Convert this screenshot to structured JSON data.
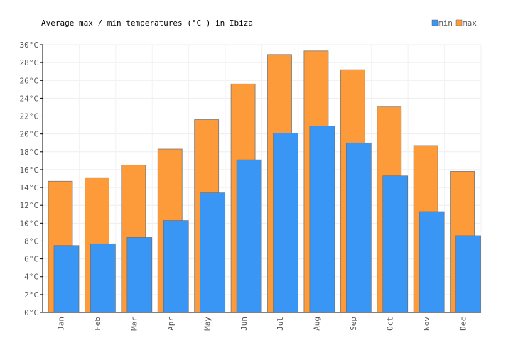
{
  "chart_data": {
    "type": "bar",
    "title": "Average max / min temperatures (°C ) in Ibiza",
    "categories": [
      "Jan",
      "Feb",
      "Mar",
      "Apr",
      "May",
      "Jun",
      "Jul",
      "Aug",
      "Sep",
      "Oct",
      "Nov",
      "Dec"
    ],
    "series": [
      {
        "name": "min",
        "color": "#3a96f5",
        "values": [
          7.5,
          7.7,
          8.4,
          10.3,
          13.4,
          17.1,
          20.1,
          20.9,
          19.0,
          15.3,
          11.3,
          8.6
        ]
      },
      {
        "name": "max",
        "color": "#fd9b3a",
        "values": [
          14.7,
          15.1,
          16.5,
          18.3,
          21.6,
          25.6,
          28.9,
          29.3,
          27.2,
          23.1,
          18.7,
          15.8
        ]
      }
    ],
    "yticks": [
      "0°C",
      "2°C",
      "4°C",
      "6°C",
      "8°C",
      "10°C",
      "12°C",
      "14°C",
      "16°C",
      "18°C",
      "20°C",
      "22°C",
      "24°C",
      "26°C",
      "28°C",
      "30°C"
    ],
    "ylim": [
      0,
      30
    ],
    "grid": true,
    "legend_position": "top-right"
  }
}
